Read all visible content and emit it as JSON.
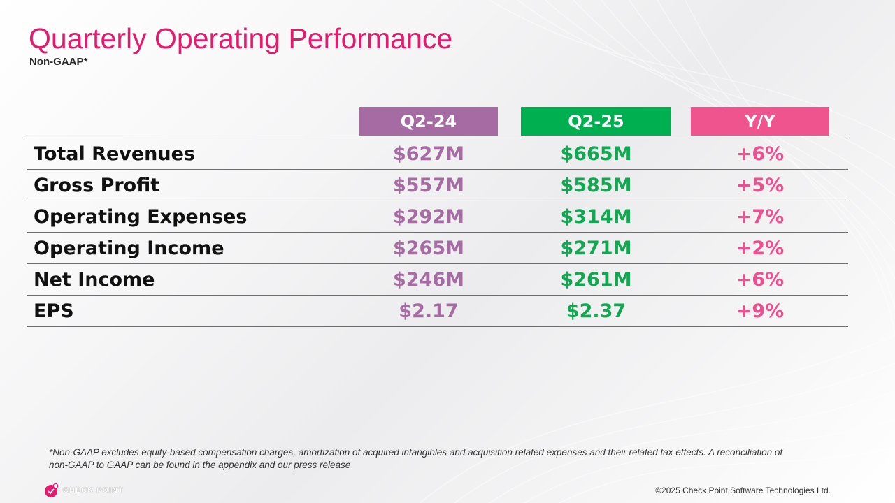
{
  "slide": {
    "title": "Quarterly Operating Performance",
    "subtitle": "Non-GAAP*"
  },
  "table": {
    "headers": [
      {
        "label": "Q2-24",
        "color": "#a56ba2"
      },
      {
        "label": "Q2-25",
        "color": "#00b050"
      },
      {
        "label": "Y/Y",
        "color": "#f0548f"
      }
    ],
    "rows": [
      {
        "label": "Total Revenues",
        "q2_24": "$627M",
        "q2_25": "$665M",
        "yy": "+6%"
      },
      {
        "label": "Gross Profit",
        "q2_24": "$557M",
        "q2_25": "$585M",
        "yy": "+5%"
      },
      {
        "label": "Operating Expenses",
        "q2_24": "$292M",
        "q2_25": "$314M",
        "yy": "+7%"
      },
      {
        "label": "Operating Income",
        "q2_24": "$265M",
        "q2_25": "$271M",
        "yy": "+2%"
      },
      {
        "label": "Net Income",
        "q2_24": "$246M",
        "q2_25": "$261M",
        "yy": "+6%"
      },
      {
        "label": "EPS",
        "q2_24": "$2.17",
        "q2_25": "$2.37",
        "yy": "+9%"
      }
    ]
  },
  "footnote": {
    "line1": "*Non-GAAP excludes equity-based compensation charges, amortization of acquired intangibles and acquisition related expenses and their related tax effects. A reconciliation of",
    "line2": "non-GAAP to GAAP can be found in the appendix and our press release"
  },
  "footer": {
    "logo_text": "CHECK POINT",
    "logo_icon": "check-point-logo-icon",
    "copyright": "©2025 Check Point Software Technologies Ltd."
  }
}
